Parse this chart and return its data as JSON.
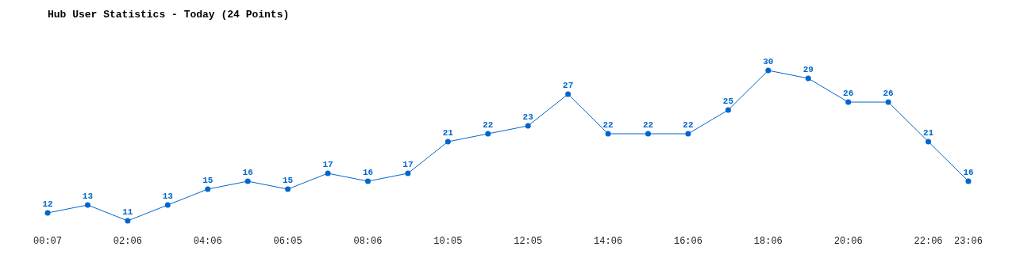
{
  "chart_data": {
    "type": "line",
    "title": "Hub User Statistics - Today (24 Points)",
    "categories": [
      "00:07",
      null,
      "02:06",
      null,
      "04:06",
      null,
      "06:05",
      null,
      "08:06",
      null,
      "10:05",
      null,
      "12:05",
      null,
      "14:06",
      null,
      "16:06",
      null,
      "18:06",
      null,
      "20:06",
      null,
      "22:06",
      "23:06"
    ],
    "values": [
      12,
      13,
      11,
      13,
      15,
      16,
      15,
      17,
      16,
      17,
      21,
      22,
      23,
      27,
      22,
      22,
      22,
      25,
      30,
      29,
      26,
      26,
      21,
      16
    ],
    "color": "#0066cc",
    "data_labels": true,
    "marker": "circle",
    "line_style": "solid"
  }
}
